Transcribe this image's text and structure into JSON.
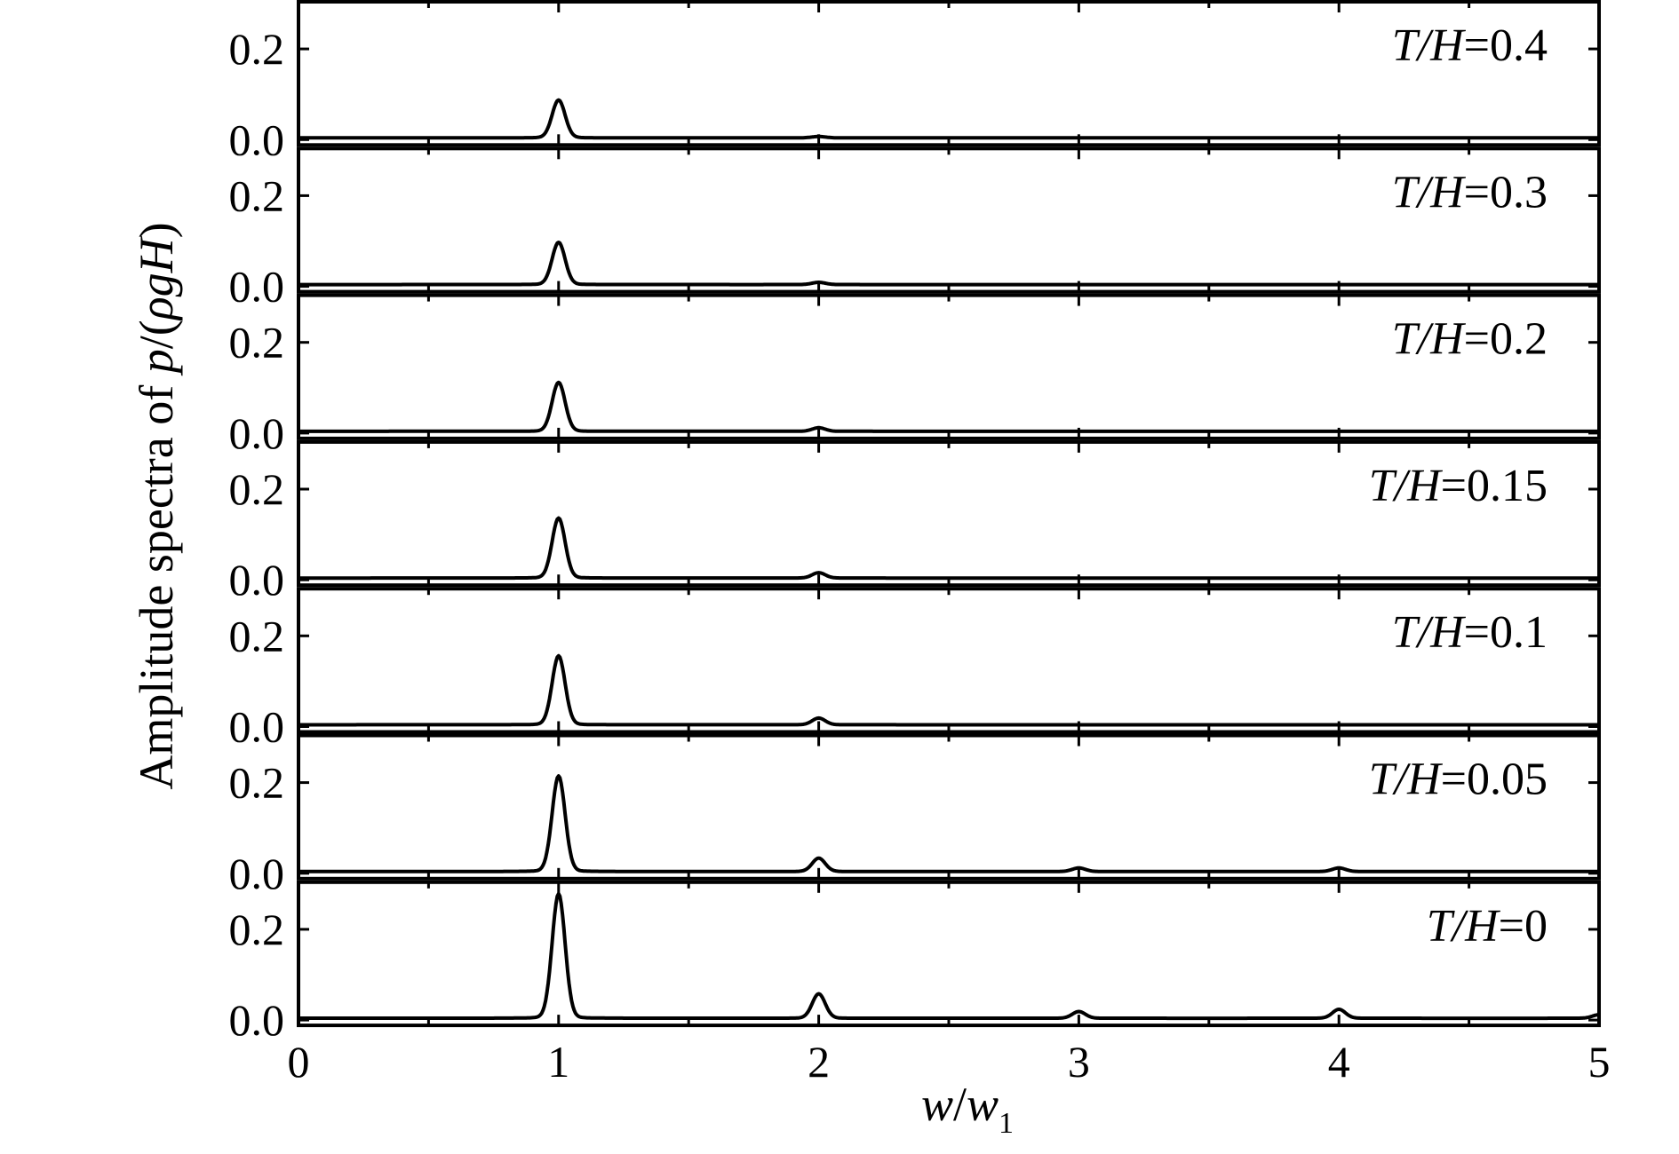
{
  "chart_data": {
    "type": "line",
    "xlabel": {
      "var": "w",
      "sep": "/",
      "var2": "w",
      "sub": "1"
    },
    "ylabel": {
      "prefix": "Amplitude spectra of ",
      "p": "p",
      "mid": "/(",
      "rho": "ρ",
      "g": "g",
      "H": "H",
      "suffix": ")"
    },
    "xlim": [
      0,
      5
    ],
    "ylim": [
      0,
      0.3
    ],
    "x_ticks": [
      "0",
      "1",
      "2",
      "3",
      "4",
      "5"
    ],
    "y_ticks": [
      "0.0",
      "0.2"
    ],
    "label_var": "T/H",
    "panels": [
      {
        "label_value": "=0.4",
        "peaks": [
          [
            1,
            0.085
          ],
          [
            2,
            0.003
          ]
        ]
      },
      {
        "label_value": "=0.3",
        "peaks": [
          [
            1,
            0.095
          ],
          [
            2,
            0.005
          ]
        ]
      },
      {
        "label_value": "=0.2",
        "peaks": [
          [
            1,
            0.11
          ],
          [
            2,
            0.008
          ]
        ]
      },
      {
        "label_value": "=0.15",
        "peaks": [
          [
            1,
            0.135
          ],
          [
            2,
            0.012
          ]
        ]
      },
      {
        "label_value": "=0.1",
        "peaks": [
          [
            1,
            0.155
          ],
          [
            2,
            0.015
          ]
        ]
      },
      {
        "label_value": "=0.05",
        "peaks": [
          [
            1,
            0.215
          ],
          [
            2,
            0.03
          ],
          [
            3,
            0.008
          ],
          [
            4,
            0.008
          ]
        ]
      },
      {
        "label_value": "=0",
        "peaks": [
          [
            1,
            0.28
          ],
          [
            2,
            0.055
          ],
          [
            3,
            0.015
          ],
          [
            4,
            0.02
          ],
          [
            5,
            0.008
          ]
        ]
      }
    ]
  }
}
